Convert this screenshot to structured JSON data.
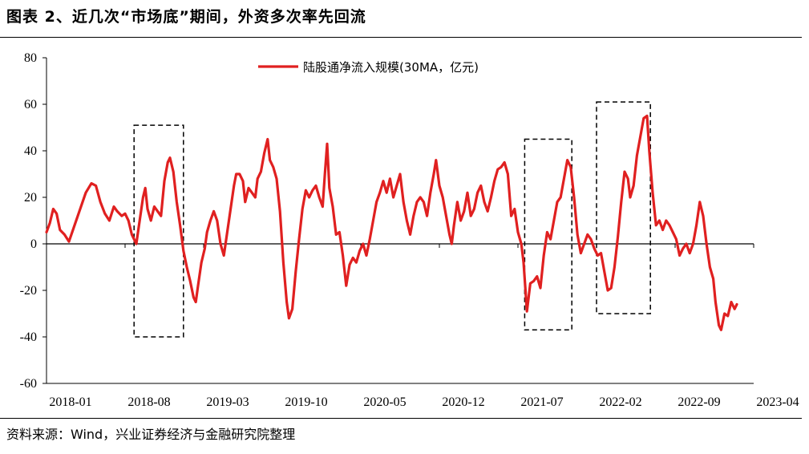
{
  "header": {
    "title": "图表 2、近几次“市场底”期间，外资多次率先回流"
  },
  "footer": {
    "source": "资料来源：Wind，兴业证券经济与金融研究院整理"
  },
  "chart_data": {
    "type": "line",
    "title": "",
    "xlabel": "",
    "ylabel": "",
    "ylim": [
      -60,
      80
    ],
    "yticks": [
      -60,
      -40,
      -20,
      0,
      20,
      40,
      60,
      80
    ],
    "xticks": [
      "2018-01",
      "2018-08",
      "2019-03",
      "2019-10",
      "2020-05",
      "2020-12",
      "2021-07",
      "2022-02",
      "2022-09",
      "2023-04"
    ],
    "legend": "top-center",
    "series": [
      {
        "name": "陆股通净流入规模(30MA，亿元)",
        "color": "#e02020",
        "points": [
          [
            0.0,
            5
          ],
          [
            0.3,
            9
          ],
          [
            0.6,
            15
          ],
          [
            0.9,
            13
          ],
          [
            1.2,
            6
          ],
          [
            1.6,
            4
          ],
          [
            2.0,
            1
          ],
          [
            2.5,
            8
          ],
          [
            3.0,
            15
          ],
          [
            3.5,
            22
          ],
          [
            4.0,
            26
          ],
          [
            4.4,
            25
          ],
          [
            4.8,
            18
          ],
          [
            5.2,
            13
          ],
          [
            5.6,
            10
          ],
          [
            6.0,
            16
          ],
          [
            6.3,
            14
          ],
          [
            6.7,
            12
          ],
          [
            7.0,
            13
          ],
          [
            7.3,
            10
          ],
          [
            7.6,
            4
          ],
          [
            8.0,
            0
          ],
          [
            8.3,
            10
          ],
          [
            8.6,
            20
          ],
          [
            8.8,
            24
          ],
          [
            9.0,
            15
          ],
          [
            9.3,
            10
          ],
          [
            9.6,
            16
          ],
          [
            9.9,
            14
          ],
          [
            10.2,
            12
          ],
          [
            10.5,
            27
          ],
          [
            10.8,
            35
          ],
          [
            11.0,
            37
          ],
          [
            11.3,
            31
          ],
          [
            11.6,
            18
          ],
          [
            11.9,
            8
          ],
          [
            12.2,
            -3
          ],
          [
            12.5,
            -10
          ],
          [
            12.8,
            -16
          ],
          [
            13.1,
            -23
          ],
          [
            13.3,
            -25
          ],
          [
            13.5,
            -18
          ],
          [
            13.8,
            -8
          ],
          [
            14.1,
            -2
          ],
          [
            14.3,
            5
          ],
          [
            14.6,
            10
          ],
          [
            14.9,
            14
          ],
          [
            15.2,
            10
          ],
          [
            15.5,
            0
          ],
          [
            15.8,
            -5
          ],
          [
            16.1,
            5
          ],
          [
            16.4,
            15
          ],
          [
            16.7,
            25
          ],
          [
            16.9,
            30
          ],
          [
            17.2,
            30
          ],
          [
            17.5,
            27
          ],
          [
            17.7,
            18
          ],
          [
            18.0,
            24
          ],
          [
            18.3,
            22
          ],
          [
            18.6,
            20
          ],
          [
            18.8,
            28
          ],
          [
            19.1,
            31
          ],
          [
            19.4,
            39
          ],
          [
            19.7,
            45
          ],
          [
            19.9,
            36
          ],
          [
            20.2,
            33
          ],
          [
            20.5,
            28
          ],
          [
            20.8,
            14
          ],
          [
            21.1,
            -8
          ],
          [
            21.4,
            -25
          ],
          [
            21.6,
            -32
          ],
          [
            21.9,
            -28
          ],
          [
            22.2,
            -12
          ],
          [
            22.5,
            2
          ],
          [
            22.8,
            15
          ],
          [
            23.1,
            23
          ],
          [
            23.4,
            20
          ],
          [
            23.7,
            23
          ],
          [
            24.0,
            25
          ],
          [
            24.3,
            20
          ],
          [
            24.6,
            16
          ],
          [
            24.8,
            30
          ],
          [
            25.0,
            43
          ],
          [
            25.2,
            24
          ],
          [
            25.5,
            16
          ],
          [
            25.8,
            4
          ],
          [
            26.1,
            5
          ],
          [
            26.4,
            -5
          ],
          [
            26.7,
            -18
          ],
          [
            27.0,
            -9
          ],
          [
            27.3,
            -6
          ],
          [
            27.6,
            -8
          ],
          [
            27.9,
            -3
          ],
          [
            28.2,
            0
          ],
          [
            28.5,
            -5
          ],
          [
            28.8,
            2
          ],
          [
            29.1,
            10
          ],
          [
            29.4,
            18
          ],
          [
            29.7,
            22
          ],
          [
            30.0,
            27
          ],
          [
            30.3,
            22
          ],
          [
            30.6,
            28
          ],
          [
            30.9,
            20
          ],
          [
            31.2,
            25
          ],
          [
            31.5,
            30
          ],
          [
            31.8,
            18
          ],
          [
            32.1,
            10
          ],
          [
            32.4,
            4
          ],
          [
            32.7,
            12
          ],
          [
            33.0,
            18
          ],
          [
            33.3,
            20
          ],
          [
            33.6,
            18
          ],
          [
            33.9,
            12
          ],
          [
            34.2,
            22
          ],
          [
            34.5,
            30
          ],
          [
            34.7,
            36
          ],
          [
            35.0,
            25
          ],
          [
            35.3,
            20
          ],
          [
            35.6,
            12
          ],
          [
            35.9,
            4
          ],
          [
            36.1,
            0
          ],
          [
            36.3,
            8
          ],
          [
            36.6,
            18
          ],
          [
            36.9,
            10
          ],
          [
            37.2,
            14
          ],
          [
            37.5,
            22
          ],
          [
            37.8,
            12
          ],
          [
            38.1,
            15
          ],
          [
            38.4,
            22
          ],
          [
            38.7,
            25
          ],
          [
            39.0,
            18
          ],
          [
            39.3,
            14
          ],
          [
            39.6,
            20
          ],
          [
            39.9,
            27
          ],
          [
            40.2,
            32
          ],
          [
            40.5,
            33
          ],
          [
            40.8,
            35
          ],
          [
            41.1,
            30
          ],
          [
            41.4,
            12
          ],
          [
            41.7,
            15
          ],
          [
            42.0,
            5
          ],
          [
            42.3,
            0
          ],
          [
            42.5,
            -8
          ],
          [
            42.8,
            -29
          ],
          [
            43.1,
            -17
          ],
          [
            43.4,
            -16
          ],
          [
            43.7,
            -14
          ],
          [
            44.0,
            -19
          ],
          [
            44.3,
            -5
          ],
          [
            44.6,
            5
          ],
          [
            44.9,
            2
          ],
          [
            45.2,
            10
          ],
          [
            45.5,
            18
          ],
          [
            45.8,
            20
          ],
          [
            46.1,
            28
          ],
          [
            46.4,
            36
          ],
          [
            46.7,
            33
          ],
          [
            47.0,
            20
          ],
          [
            47.3,
            4
          ],
          [
            47.6,
            -4
          ],
          [
            47.9,
            0
          ],
          [
            48.2,
            4
          ],
          [
            48.5,
            2
          ],
          [
            48.8,
            -2
          ],
          [
            49.1,
            -5
          ],
          [
            49.4,
            -4
          ],
          [
            49.7,
            -12
          ],
          [
            50.0,
            -20
          ],
          [
            50.3,
            -19
          ],
          [
            50.6,
            -10
          ],
          [
            50.9,
            3
          ],
          [
            51.2,
            18
          ],
          [
            51.5,
            31
          ],
          [
            51.8,
            28
          ],
          [
            52.0,
            20
          ],
          [
            52.3,
            25
          ],
          [
            52.6,
            38
          ],
          [
            52.9,
            46
          ],
          [
            53.2,
            54
          ],
          [
            53.5,
            55
          ],
          [
            53.7,
            40
          ],
          [
            54.0,
            22
          ],
          [
            54.3,
            8
          ],
          [
            54.6,
            10
          ],
          [
            54.9,
            6
          ],
          [
            55.2,
            10
          ],
          [
            55.5,
            8
          ],
          [
            55.8,
            5
          ],
          [
            56.1,
            2
          ],
          [
            56.4,
            -5
          ],
          [
            56.7,
            -2
          ],
          [
            57.0,
            0
          ],
          [
            57.3,
            -4
          ],
          [
            57.6,
            0
          ],
          [
            57.9,
            8
          ],
          [
            58.2,
            18
          ],
          [
            58.5,
            12
          ],
          [
            58.8,
            0
          ],
          [
            59.1,
            -10
          ],
          [
            59.4,
            -15
          ],
          [
            59.6,
            -25
          ],
          [
            59.9,
            -35
          ],
          [
            60.1,
            -37
          ],
          [
            60.4,
            -30
          ],
          [
            60.7,
            -31
          ],
          [
            61.0,
            -25
          ],
          [
            61.3,
            -28
          ],
          [
            61.5,
            -26
          ]
        ]
      }
    ],
    "annotations": [
      {
        "type": "dashed-box",
        "x": [
          7.8,
          12.2
        ],
        "y": [
          -40,
          51
        ]
      },
      {
        "type": "dashed-box",
        "x": [
          42.6,
          46.8
        ],
        "y": [
          -37,
          45
        ]
      },
      {
        "type": "dashed-box",
        "x": [
          49.0,
          53.8
        ],
        "y": [
          -30,
          61
        ]
      }
    ]
  }
}
